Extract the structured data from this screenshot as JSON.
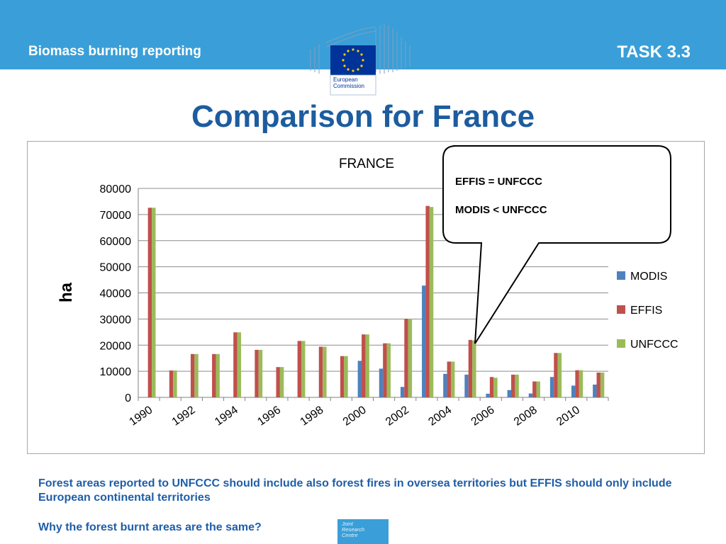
{
  "header": {
    "left": "Biomass burning reporting",
    "right": "TASK 3.3"
  },
  "logo": {
    "text_line1": "European",
    "text_line2": "Commission"
  },
  "page_title": "Comparison for France",
  "callout": {
    "line1": "EFFIS = UNFCCC",
    "line2": "MODIS < UNFCCC"
  },
  "footer": {
    "text": "Forest areas reported to UNFCCC should include also forest fires in oversea territories but EFFIS should only include European continental territories",
    "question": "Why the forest burnt areas are the same?"
  },
  "jrc_logo": {
    "l1": "Joint",
    "l2": "Research",
    "l3": "Centre"
  },
  "colors": {
    "header": "#3a9fd8",
    "title": "#1d5c9e",
    "modis": "#4f81bd",
    "effis": "#c0504d",
    "unfccc": "#9bbb59"
  },
  "chart_data": {
    "type": "bar",
    "title": "FRANCE",
    "ylabel": "ha",
    "xlabel": "",
    "ylim": [
      0,
      80000
    ],
    "yticks": [
      0,
      10000,
      20000,
      30000,
      40000,
      50000,
      60000,
      70000,
      80000
    ],
    "categories": [
      "1990",
      "1991",
      "1992",
      "1993",
      "1994",
      "1995",
      "1996",
      "1997",
      "1998",
      "1999",
      "2000",
      "2001",
      "2002",
      "2003",
      "2004",
      "2005",
      "2006",
      "2007",
      "2008",
      "2009",
      "2010",
      "2011"
    ],
    "xtick_labels": [
      "1990",
      "1992",
      "1994",
      "1996",
      "1998",
      "2000",
      "2002",
      "2004",
      "2006",
      "2008",
      "2010"
    ],
    "legend_position": "right",
    "series": [
      {
        "name": "MODIS",
        "color": "#4f81bd",
        "values": [
          null,
          null,
          null,
          null,
          null,
          null,
          null,
          null,
          null,
          null,
          14000,
          11000,
          4000,
          42800,
          9000,
          8700,
          1400,
          2800,
          1500,
          7800,
          4500,
          4900
        ]
      },
      {
        "name": "EFFIS",
        "color": "#c0504d",
        "values": [
          72600,
          10300,
          16600,
          16600,
          24900,
          18200,
          11600,
          21600,
          19400,
          15800,
          24100,
          20700,
          30100,
          73300,
          13700,
          22000,
          7800,
          8700,
          6100,
          17000,
          10400,
          9500
        ]
      },
      {
        "name": "UNFCCC",
        "color": "#9bbb59",
        "values": [
          72600,
          10300,
          16600,
          16600,
          24900,
          18200,
          11600,
          21600,
          19400,
          15800,
          24100,
          20700,
          30100,
          72900,
          13700,
          21800,
          7500,
          8700,
          6100,
          17000,
          10400,
          9500
        ]
      }
    ]
  }
}
